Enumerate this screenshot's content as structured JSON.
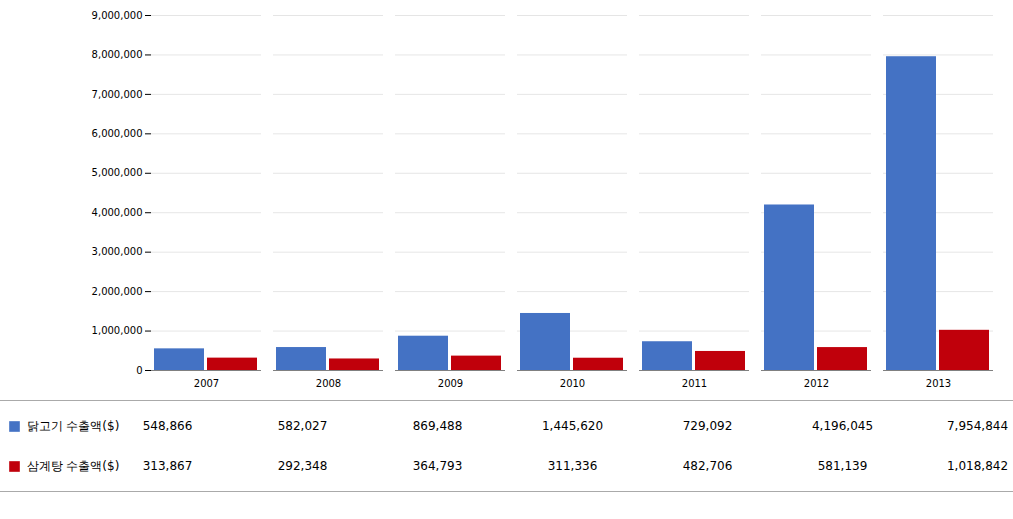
{
  "chart_data": {
    "type": "bar",
    "categories": [
      "2007",
      "2008",
      "2009",
      "2010",
      "2011",
      "2012",
      "2013"
    ],
    "series": [
      {
        "name": "닭고기 수출액($)",
        "color": "#4472c4",
        "values": [
          548866,
          582027,
          869488,
          1445620,
          729092,
          4196045,
          7954844
        ],
        "value_labels": [
          "548,866",
          "582,027",
          "869,488",
          "1,445,620",
          "729,092",
          "4,196,045",
          "7,954,844"
        ]
      },
      {
        "name": "삼계탕 수출액($)",
        "color": "#c0000b",
        "values": [
          313867,
          292348,
          364793,
          311336,
          482706,
          581139,
          1018842
        ],
        "value_labels": [
          "313,867",
          "292,348",
          "364,793",
          "311,336",
          "482,706",
          "581,139",
          "1,018,842"
        ]
      }
    ],
    "ylim": [
      0,
      9000000
    ],
    "yticks": [
      0,
      {
        "value": 1000000,
        "label": "1,000,000"
      },
      {
        "value": 2000000,
        "label": "2,000,000"
      },
      {
        "value": 3000000,
        "label": "3,000,000"
      },
      {
        "value": 4000000,
        "label": "4,000,000"
      },
      {
        "value": 5000000,
        "label": "5,000,000"
      },
      {
        "value": 6000000,
        "label": "6,000,000"
      },
      {
        "value": 7000000,
        "label": "7,000,000"
      },
      {
        "value": 8000000,
        "label": "8,000,000"
      },
      {
        "value": 9000000,
        "label": "9,000,000"
      }
    ],
    "grid": true,
    "legend": "bottom"
  }
}
